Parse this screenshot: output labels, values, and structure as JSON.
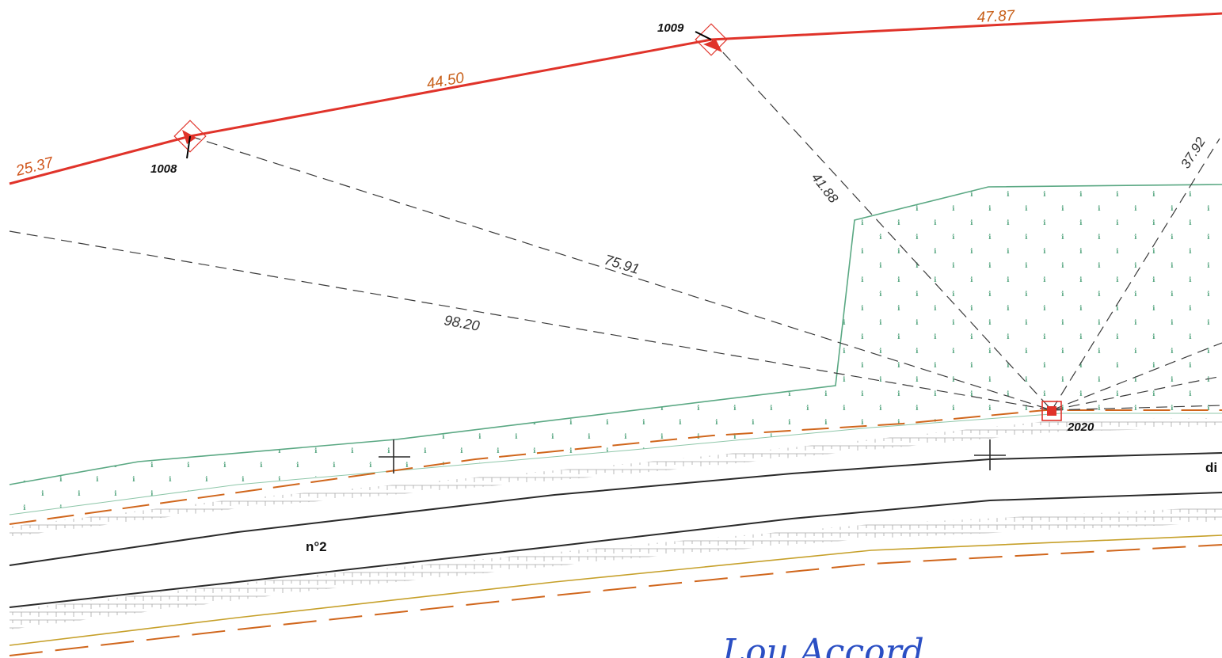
{
  "boundary": {
    "segments": [
      {
        "length": "25.37"
      },
      {
        "length": "44.50"
      },
      {
        "length": "47.87"
      }
    ],
    "color": "#e0332a",
    "label_color": "#c8601a"
  },
  "points": [
    {
      "id": "1008"
    },
    {
      "id": "1009"
    },
    {
      "id": "2020"
    }
  ],
  "distances": [
    "75.91",
    "98.20",
    "41.88",
    "37.92"
  ],
  "road": {
    "name": "n°2",
    "label_cut": "di"
  },
  "handwriting": "Lou Accord",
  "colors": {
    "vegetation": "#5aa883",
    "road_edge": "#2a2a2a",
    "dash_orange": "#d0661c",
    "kerb_gray": "#9a9a9a",
    "yellow_line": "#c6a02a"
  }
}
